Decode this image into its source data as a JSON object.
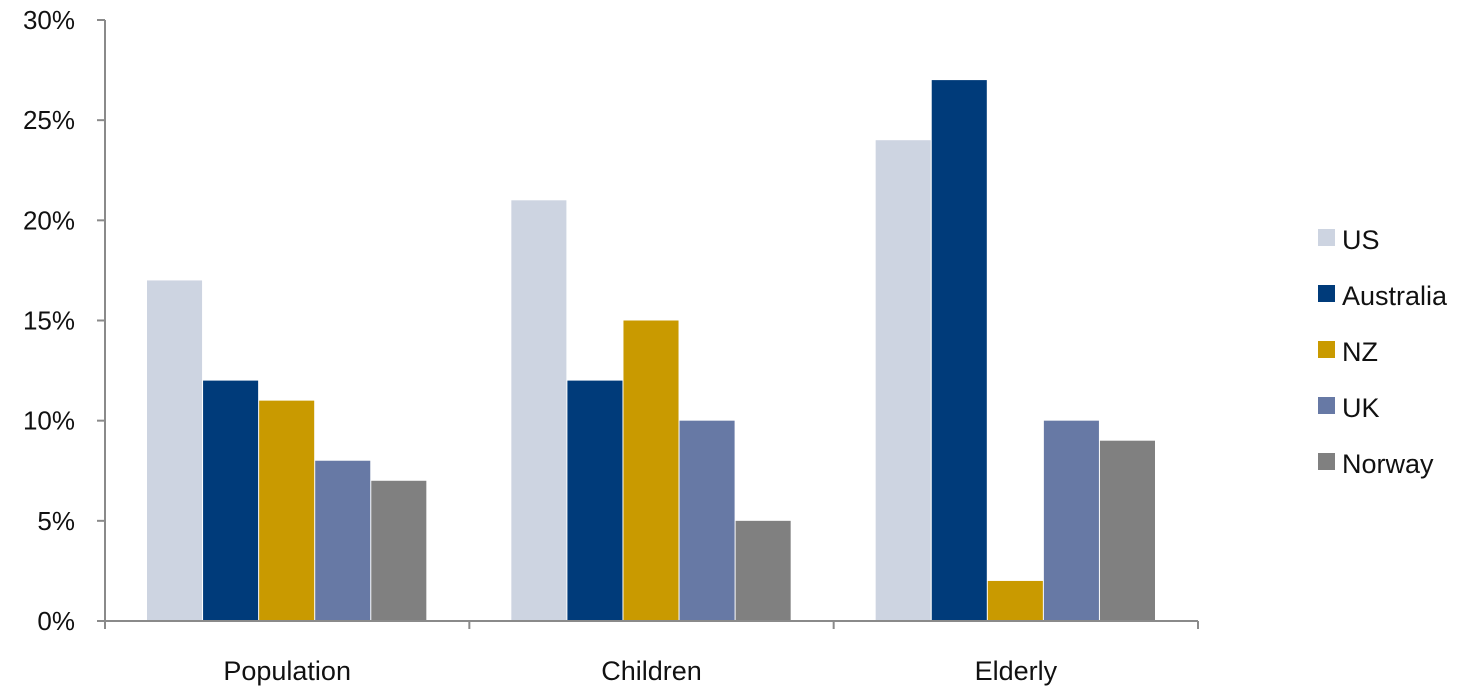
{
  "chart_data": {
    "type": "bar",
    "categories": [
      "Population",
      "Children",
      "Elderly"
    ],
    "series": [
      {
        "name": "US",
        "color": "#cdd4e1",
        "values": [
          17,
          21,
          24
        ]
      },
      {
        "name": "Australia",
        "color": "#003b7a",
        "values": [
          12,
          12,
          27
        ]
      },
      {
        "name": "NZ",
        "color": "#c99a00",
        "values": [
          11,
          15,
          2
        ]
      },
      {
        "name": "UK",
        "color": "#6779a5",
        "values": [
          8,
          10,
          10
        ]
      },
      {
        "name": "Norway",
        "color": "#808080",
        "values": [
          7,
          5,
          9
        ]
      }
    ],
    "yticks": [
      "0%",
      "5%",
      "10%",
      "15%",
      "20%",
      "25%",
      "30%"
    ],
    "ylim": [
      0,
      30
    ],
    "ystep": 5,
    "y_unit": "%",
    "legend_position": "right",
    "grid": false
  }
}
